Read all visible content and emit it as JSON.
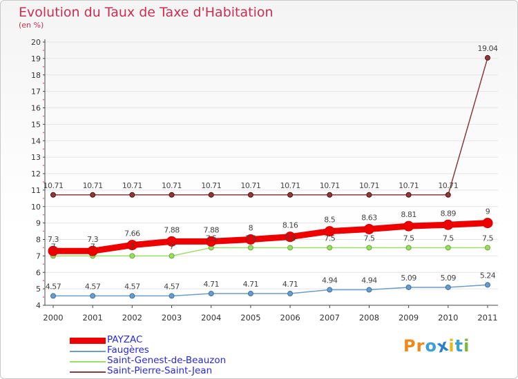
{
  "title": "Evolution du Taux de Taxe d'Habitation",
  "unit": "(en %)",
  "logo": {
    "text": "Proxiti",
    "colors": [
      "#ee8a1a",
      "#ee8a1a",
      "#3aa0d8",
      "#2a7fc9",
      "#e6b81c",
      "#3aa0d8",
      "#7ab83a"
    ]
  },
  "chart_data": {
    "type": "line",
    "title": "Evolution du Taux de Taxe d'Habitation",
    "ylabel": "(en %)",
    "xlabel": "",
    "ylim": [
      4,
      20
    ],
    "yticks": [
      "4",
      "5",
      "6",
      "7",
      "8",
      "9",
      "10",
      "11",
      "12",
      "13",
      "14",
      "15",
      "16",
      "17",
      "18",
      "19",
      "20"
    ],
    "categories": [
      "2000",
      "2001",
      "2002",
      "2003",
      "2004",
      "2005",
      "2006",
      "2007",
      "2008",
      "2009",
      "2010",
      "2011"
    ],
    "series": [
      {
        "name": "PAYZAC",
        "color": "#ee0000",
        "bold": true,
        "values": [
          7.3,
          7.3,
          7.66,
          7.88,
          7.88,
          8,
          8.16,
          8.5,
          8.63,
          8.81,
          8.89,
          9
        ],
        "labels": [
          "7.3",
          "7.3",
          "7.66",
          "7.88",
          "7.88",
          "8",
          "8.16",
          "8.5",
          "8.63",
          "8.81",
          "8.89",
          "9"
        ]
      },
      {
        "name": "Faugères",
        "color": "#6a9cc8",
        "values": [
          4.57,
          4.57,
          4.57,
          4.57,
          4.71,
          4.71,
          4.71,
          4.94,
          4.94,
          5.09,
          5.09,
          5.24
        ],
        "labels": [
          "4.57",
          "4.57",
          "4.57",
          "4.57",
          "4.71",
          "4.71",
          "4.71",
          "4.94",
          "4.94",
          "5.09",
          "5.09",
          "5.24"
        ]
      },
      {
        "name": "Saint-Genest-de-Beauzon",
        "color": "#99dd66",
        "values": [
          7,
          7,
          7,
          7,
          7.5,
          7.5,
          7.5,
          7.5,
          7.5,
          7.5,
          7.5,
          7.5
        ],
        "labels": [
          "7",
          "7",
          "7",
          "7",
          "7.5",
          "7.5",
          "7.5",
          "7.5",
          "7.5",
          "7.5",
          "7.5",
          "7.5"
        ]
      },
      {
        "name": "Saint-Pierre-Saint-Jean",
        "color": "#8a3a3a",
        "values": [
          10.71,
          10.71,
          10.71,
          10.71,
          10.71,
          10.71,
          10.71,
          10.71,
          10.71,
          10.71,
          10.71,
          19.04
        ],
        "labels": [
          "10.71",
          "10.71",
          "10.71",
          "10.71",
          "10.71",
          "10.71",
          "10.71",
          "10.71",
          "10.71",
          "10.71",
          "10.71",
          "19.04"
        ]
      }
    ]
  }
}
